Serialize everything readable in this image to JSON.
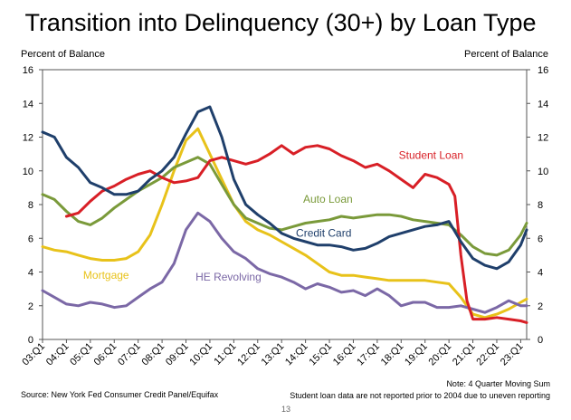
{
  "chart_data": {
    "type": "line",
    "title": "Transition into Delinquency (30+) by Loan Type",
    "ylabel_left": "Percent of Balance",
    "ylabel_right": "Percent of Balance",
    "ylim": [
      0,
      16
    ],
    "yticks": [
      "0",
      "2",
      "4",
      "6",
      "8",
      "10",
      "12",
      "14",
      "16"
    ],
    "xlim": [
      2003.0,
      2023.25
    ],
    "xticks": [
      "03:Q1",
      "04:Q1",
      "05:Q1",
      "06:Q1",
      "07:Q1",
      "08:Q1",
      "09:Q1",
      "10:Q1",
      "11:Q1",
      "12:Q1",
      "13:Q1",
      "14:Q1",
      "15:Q1",
      "16:Q1",
      "17:Q1",
      "18:Q1",
      "19:Q1",
      "20:Q1",
      "21:Q1",
      "22:Q1",
      "23:Q1"
    ],
    "grid": false,
    "legend": "none",
    "series": [
      {
        "name": "Student Loan",
        "color": "#d81f26",
        "label_color": "#d81f26",
        "x": [
          2004.0,
          2004.5,
          2005.0,
          2005.5,
          2006.0,
          2006.5,
          2007.0,
          2007.5,
          2008.0,
          2008.5,
          2009.0,
          2009.5,
          2010.0,
          2010.5,
          2011.0,
          2011.5,
          2012.0,
          2012.5,
          2013.0,
          2013.5,
          2014.0,
          2014.5,
          2015.0,
          2015.5,
          2016.0,
          2016.5,
          2017.0,
          2017.5,
          2018.0,
          2018.5,
          2019.0,
          2019.5,
          2020.0,
          2020.25,
          2020.5,
          2020.75,
          2021.0,
          2021.5,
          2022.0,
          2022.5,
          2023.0,
          2023.25
        ],
        "y": [
          7.3,
          7.5,
          8.2,
          8.8,
          9.1,
          9.5,
          9.8,
          10.0,
          9.6,
          9.3,
          9.4,
          9.6,
          10.6,
          10.8,
          10.6,
          10.4,
          10.6,
          11.0,
          11.5,
          11.0,
          11.4,
          11.5,
          11.3,
          10.9,
          10.6,
          10.2,
          10.4,
          10.0,
          9.5,
          9.0,
          9.8,
          9.6,
          9.2,
          8.5,
          5.0,
          2.3,
          1.2,
          1.2,
          1.3,
          1.2,
          1.1,
          1.0
        ]
      },
      {
        "name": "Auto Loan",
        "color": "#7a9a3a",
        "label_color": "#7a9a3a",
        "x": [
          2003.0,
          2003.5,
          2004.0,
          2004.5,
          2005.0,
          2005.5,
          2006.0,
          2006.5,
          2007.0,
          2007.5,
          2008.0,
          2008.5,
          2009.0,
          2009.5,
          2010.0,
          2010.5,
          2011.0,
          2011.5,
          2012.0,
          2012.5,
          2013.0,
          2013.5,
          2014.0,
          2014.5,
          2015.0,
          2015.5,
          2016.0,
          2016.5,
          2017.0,
          2017.5,
          2018.0,
          2018.5,
          2019.0,
          2019.5,
          2020.0,
          2020.5,
          2021.0,
          2021.5,
          2022.0,
          2022.5,
          2023.0,
          2023.25
        ],
        "y": [
          8.6,
          8.3,
          7.6,
          7.0,
          6.8,
          7.2,
          7.8,
          8.3,
          8.8,
          9.2,
          9.6,
          10.2,
          10.5,
          10.8,
          10.4,
          9.2,
          8.0,
          7.2,
          6.9,
          6.6,
          6.5,
          6.7,
          6.9,
          7.0,
          7.1,
          7.3,
          7.2,
          7.3,
          7.4,
          7.4,
          7.3,
          7.1,
          7.0,
          6.9,
          6.8,
          6.2,
          5.5,
          5.1,
          5.0,
          5.3,
          6.2,
          6.9
        ]
      },
      {
        "name": "Credit Card",
        "color": "#1f3f6b",
        "label_color": "#1f3f6b",
        "x": [
          2003.0,
          2003.5,
          2004.0,
          2004.5,
          2005.0,
          2005.5,
          2006.0,
          2006.5,
          2007.0,
          2007.5,
          2008.0,
          2008.5,
          2009.0,
          2009.5,
          2010.0,
          2010.5,
          2011.0,
          2011.5,
          2012.0,
          2012.5,
          2013.0,
          2013.5,
          2014.0,
          2014.5,
          2015.0,
          2015.5,
          2016.0,
          2016.5,
          2017.0,
          2017.5,
          2018.0,
          2018.5,
          2019.0,
          2019.5,
          2020.0,
          2020.5,
          2021.0,
          2021.5,
          2022.0,
          2022.5,
          2023.0,
          2023.25
        ],
        "y": [
          12.3,
          12.0,
          10.8,
          10.2,
          9.3,
          9.0,
          8.6,
          8.6,
          8.8,
          9.5,
          10.0,
          10.8,
          12.2,
          13.5,
          13.8,
          12.0,
          9.5,
          8.0,
          7.4,
          6.9,
          6.3,
          6.0,
          5.8,
          5.6,
          5.6,
          5.5,
          5.3,
          5.4,
          5.7,
          6.1,
          6.3,
          6.5,
          6.7,
          6.8,
          7.0,
          5.8,
          4.8,
          4.4,
          4.2,
          4.6,
          5.6,
          6.5
        ]
      },
      {
        "name": "Mortgage",
        "color": "#e8c21a",
        "label_color": "#e8c21a",
        "x": [
          2003.0,
          2003.5,
          2004.0,
          2004.5,
          2005.0,
          2005.5,
          2006.0,
          2006.5,
          2007.0,
          2007.5,
          2008.0,
          2008.5,
          2009.0,
          2009.5,
          2010.0,
          2010.5,
          2011.0,
          2011.5,
          2012.0,
          2012.5,
          2013.0,
          2013.5,
          2014.0,
          2014.5,
          2015.0,
          2015.5,
          2016.0,
          2016.5,
          2017.0,
          2017.5,
          2018.0,
          2018.5,
          2019.0,
          2019.5,
          2020.0,
          2020.5,
          2021.0,
          2021.5,
          2022.0,
          2022.5,
          2023.0,
          2023.25
        ],
        "y": [
          5.5,
          5.3,
          5.2,
          5.0,
          4.8,
          4.7,
          4.7,
          4.8,
          5.2,
          6.2,
          8.0,
          10.0,
          11.8,
          12.5,
          11.0,
          9.5,
          8.0,
          7.0,
          6.5,
          6.2,
          5.8,
          5.4,
          5.0,
          4.5,
          4.0,
          3.8,
          3.8,
          3.7,
          3.6,
          3.5,
          3.5,
          3.5,
          3.5,
          3.4,
          3.3,
          2.5,
          1.5,
          1.3,
          1.5,
          1.8,
          2.2,
          2.4
        ]
      },
      {
        "name": "HE Revolving",
        "color": "#7b68a6",
        "label_color": "#7b68a6",
        "x": [
          2003.0,
          2003.5,
          2004.0,
          2004.5,
          2005.0,
          2005.5,
          2006.0,
          2006.5,
          2007.0,
          2007.5,
          2008.0,
          2008.5,
          2009.0,
          2009.5,
          2010.0,
          2010.5,
          2011.0,
          2011.5,
          2012.0,
          2012.5,
          2013.0,
          2013.5,
          2014.0,
          2014.5,
          2015.0,
          2015.5,
          2016.0,
          2016.5,
          2017.0,
          2017.5,
          2018.0,
          2018.5,
          2019.0,
          2019.5,
          2020.0,
          2020.5,
          2021.0,
          2021.5,
          2022.0,
          2022.5,
          2023.0,
          2023.25
        ],
        "y": [
          2.9,
          2.5,
          2.1,
          2.0,
          2.2,
          2.1,
          1.9,
          2.0,
          2.5,
          3.0,
          3.4,
          4.5,
          6.5,
          7.5,
          7.0,
          6.0,
          5.2,
          4.8,
          4.2,
          3.9,
          3.7,
          3.4,
          3.0,
          3.3,
          3.1,
          2.8,
          2.9,
          2.6,
          3.0,
          2.6,
          2.0,
          2.2,
          2.2,
          1.9,
          1.9,
          2.0,
          1.8,
          1.6,
          1.9,
          2.3,
          2.0,
          2.0
        ]
      }
    ],
    "series_labels": [
      {
        "text": "Student Loan",
        "color": "#d81f26"
      },
      {
        "text": "Auto Loan",
        "color": "#7a9a3a"
      },
      {
        "text": "Credit Card",
        "color": "#1f3f6b"
      },
      {
        "text": "Mortgage",
        "color": "#e8c21a"
      },
      {
        "text": "HE Revolving",
        "color": "#7b68a6"
      }
    ]
  },
  "footer": {
    "source": "Source: New York Fed Consumer Credit Panel/Equifax",
    "note1": "Note: 4 Quarter Moving Sum",
    "note2": "Student loan data are not reported prior to 2004 due to uneven reporting",
    "page": "13"
  }
}
